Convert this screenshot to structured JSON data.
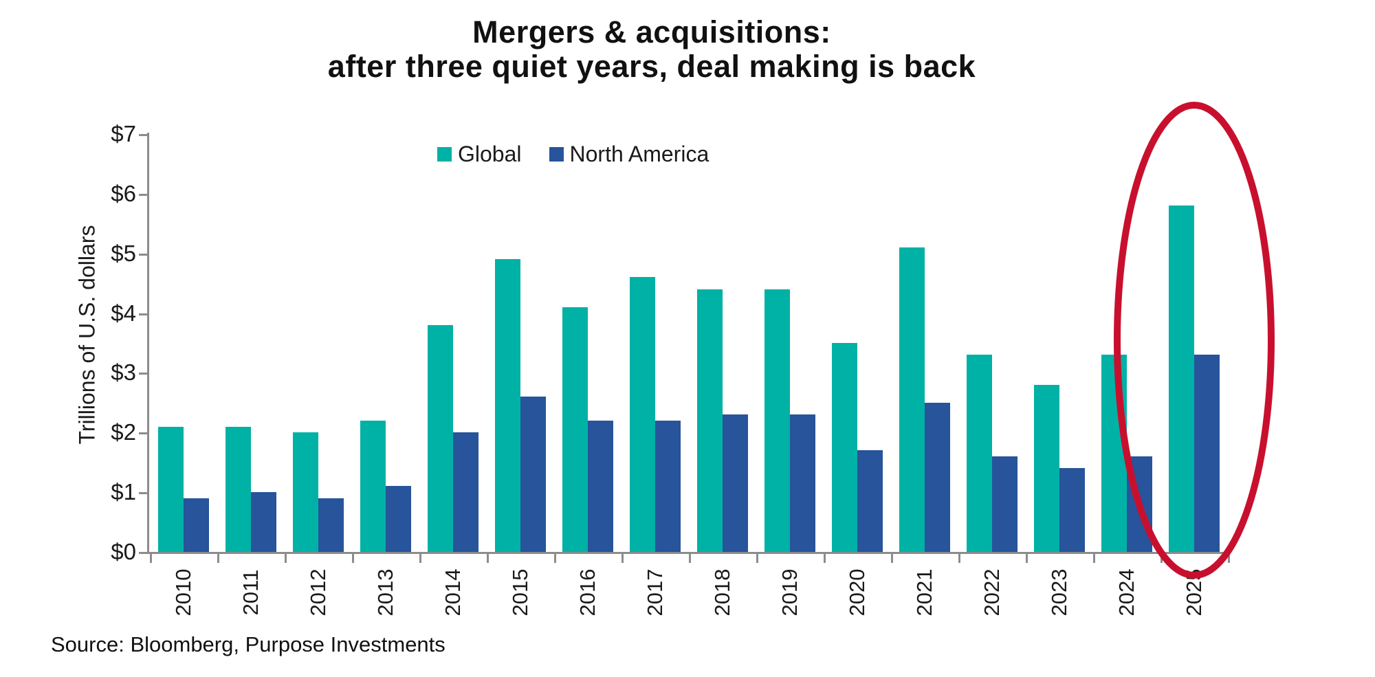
{
  "title": {
    "line1": "Mergers & acquisitions:",
    "line2": "after three quiet years, deal making is back"
  },
  "legend": [
    {
      "label": "Global",
      "color": "#00b1a5"
    },
    {
      "label": "North America",
      "color": "#27549b"
    }
  ],
  "source": "Source: Bloomberg, Purpose Investments",
  "colors": {
    "global_series": "#00b1a5",
    "north_america_series": "#27549b",
    "highlight_ellipse": "#c8102e",
    "axis": "#8c8c8c"
  },
  "chart_data": {
    "type": "bar",
    "title": "Mergers & acquisitions: after three quiet years, deal making is back",
    "categories": [
      "2010",
      "2011",
      "2012",
      "2013",
      "2014",
      "2015",
      "2016",
      "2017",
      "2018",
      "2019",
      "2020",
      "2021",
      "2022",
      "2023",
      "2024",
      "2025"
    ],
    "series": [
      {
        "name": "Global",
        "color": "#00b1a5",
        "values": [
          2.1,
          2.1,
          2.0,
          2.2,
          3.8,
          4.9,
          4.1,
          4.6,
          4.4,
          4.4,
          3.5,
          5.1,
          3.3,
          2.8,
          3.3,
          5.8
        ]
      },
      {
        "name": "North America",
        "color": "#27549b",
        "values": [
          0.9,
          1.0,
          0.9,
          1.1,
          2.0,
          2.6,
          2.2,
          2.2,
          2.3,
          2.3,
          1.7,
          2.5,
          1.6,
          1.4,
          1.6,
          3.3
        ]
      }
    ],
    "xlabel": "",
    "ylabel": "Trillions of U.S. dollars",
    "ylim": [
      0,
      7
    ],
    "ytick_values": [
      0,
      1,
      2,
      3,
      4,
      5,
      6,
      7
    ],
    "ytick_labels": [
      "$0",
      "$1",
      "$2",
      "$3",
      "$4",
      "$5",
      "$6",
      "$7"
    ],
    "grid": false,
    "legend_position": "top-center",
    "annotation": {
      "type": "ellipse",
      "target_category": "2025",
      "color": "#c8102e",
      "meaning": "highlights 2025 bars"
    }
  }
}
